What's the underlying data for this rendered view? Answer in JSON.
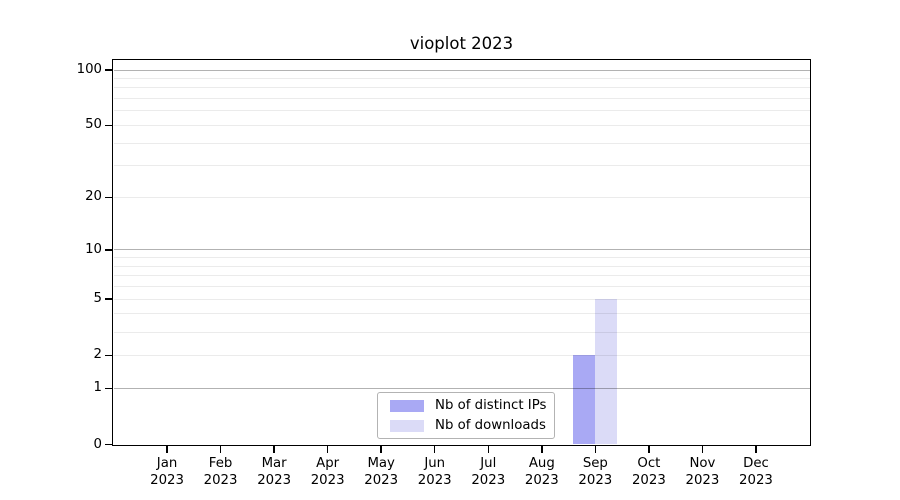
{
  "chart_data": {
    "type": "bar",
    "title": "vioplot 2023",
    "categories": [
      "Jan",
      "Feb",
      "Mar",
      "Apr",
      "May",
      "Jun",
      "Jul",
      "Aug",
      "Sep",
      "Oct",
      "Nov",
      "Dec"
    ],
    "category_year": "2023",
    "series": [
      {
        "name": "Nb of distinct IPs",
        "color": "#a9a9f4",
        "values": [
          0,
          0,
          0,
          0,
          0,
          0,
          0,
          0,
          2,
          0,
          0,
          0
        ]
      },
      {
        "name": "Nb of downloads",
        "color": "#dbdbf7",
        "values": [
          0,
          0,
          0,
          0,
          0,
          0,
          0,
          0,
          5,
          0,
          0,
          0
        ]
      }
    ],
    "xlabel": "",
    "ylabel": "",
    "yscale": "log1p",
    "ylim": [
      0,
      115
    ],
    "y_ticks": [
      0,
      1,
      2,
      5,
      10,
      20,
      50,
      100
    ],
    "grid": {
      "major_lines": [
        1,
        10,
        100
      ],
      "minor_lines": [
        2,
        3,
        4,
        5,
        6,
        7,
        8,
        9,
        20,
        30,
        40,
        50,
        60,
        70,
        80,
        90
      ],
      "major_color": "rgba(0,0,0,0.30)",
      "minor_color": "rgba(0,0,0,0.08)"
    },
    "legend_position": "bottom-center",
    "colors": {
      "background": "#ffffff",
      "spine": "#000000"
    }
  }
}
